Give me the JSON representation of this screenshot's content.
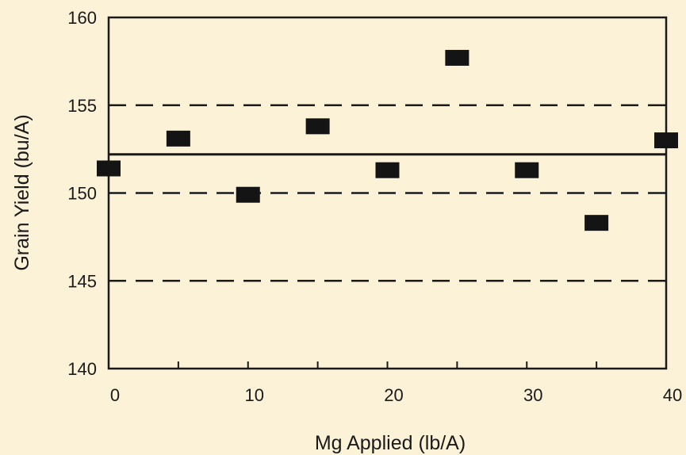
{
  "chart_data": {
    "type": "scatter",
    "xlabel": "Mg Applied (lb/A)",
    "ylabel": "Grain Yield (bu/A)",
    "xlim": [
      0,
      40
    ],
    "ylim": [
      140,
      160
    ],
    "xticks": [
      "0",
      "10",
      "20",
      "30",
      "40"
    ],
    "xtick_values": [
      0,
      10,
      20,
      30,
      40
    ],
    "xminor_ticks": [
      5,
      15,
      25,
      35
    ],
    "yticks": [
      "140",
      "145",
      "150",
      "155",
      "160"
    ],
    "ytick_values": [
      140,
      145,
      150,
      155,
      160
    ],
    "series": [
      {
        "marker": "square",
        "color": "#141414",
        "x": [
          0,
          5,
          10,
          15,
          20,
          25,
          30,
          35,
          40
        ],
        "y": [
          151.4,
          153.1,
          149.9,
          153.8,
          151.3,
          157.7,
          151.3,
          148.3,
          153.0
        ]
      }
    ],
    "reference_lines": [
      {
        "y": 152.2,
        "style": "solid"
      },
      {
        "y": 155,
        "style": "dashed"
      },
      {
        "y": 150,
        "style": "dashed"
      },
      {
        "y": 145,
        "style": "dashed"
      }
    ],
    "grid": false,
    "legend": "none"
  }
}
